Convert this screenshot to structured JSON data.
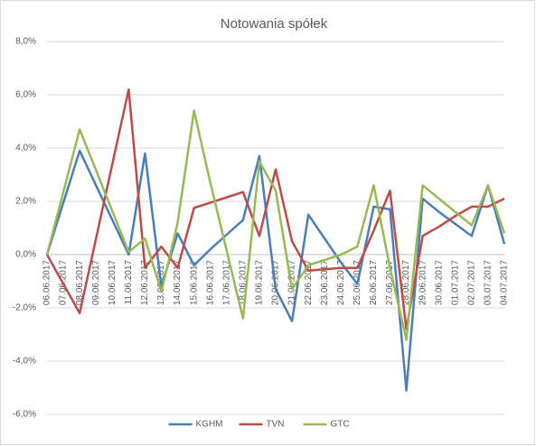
{
  "chart_data": {
    "type": "line",
    "title": "Notowania spółek",
    "categories": [
      "06.06.2017",
      "07.06.2017",
      "08.06.2017",
      "09.06.2017",
      "10.06.2017",
      "11.06.2017",
      "12.06.2017",
      "13.06.2017",
      "14.06.2017",
      "15.06.2017",
      "16.06.2017",
      "17.06.2017",
      "18.06.2017",
      "19.06.2017",
      "20.06.2017",
      "21.06.2017",
      "22.06.2017",
      "23.06.2017",
      "24.06.2017",
      "25.06.2017",
      "26.06.2017",
      "27.06.2017",
      "28.06.2017",
      "29.06.2017",
      "30.06.2017",
      "01.07.2017",
      "02.07.2017",
      "03.07.2017",
      "04.07.2017"
    ],
    "series": [
      {
        "name": "KGHM",
        "color": "#4a7ebb",
        "values": [
          0,
          1.95,
          3.9,
          2.6,
          1.3,
          0,
          3.8,
          -1.2,
          0.8,
          -0.4,
          0.2,
          0.75,
          1.3,
          3.7,
          -1.3,
          -2.5,
          1.5,
          0.6,
          -0.3,
          -1.1,
          1.8,
          1.7,
          -5.1,
          2.1,
          1.6,
          1.15,
          0.7,
          2.6,
          0.4
        ]
      },
      {
        "name": "TVN",
        "color": "#be4b48",
        "values": [
          0,
          -1.1,
          -2.2,
          0.6,
          3.4,
          6.2,
          -0.5,
          0.3,
          -0.5,
          1.75,
          1.95,
          2.15,
          2.35,
          0.7,
          3.2,
          0.5,
          -0.6,
          -0.55,
          -0.5,
          -0.5,
          0.9,
          2.4,
          -2.8,
          0.7,
          1.05,
          1.45,
          1.8,
          1.8,
          2.1
        ]
      },
      {
        "name": "GTC",
        "color": "#98b954",
        "values": [
          0,
          2.35,
          4.7,
          3.17,
          1.63,
          0.1,
          0.6,
          -1.4,
          1.2,
          5.4,
          2.7,
          0.15,
          -2.4,
          3.5,
          2.4,
          -1.3,
          -0.4,
          -0.2,
          0,
          0.3,
          2.6,
          -0.5,
          -3.2,
          2.6,
          2.1,
          1.6,
          1.1,
          2.6,
          0.8
        ]
      }
    ],
    "ylim": [
      -6,
      8
    ],
    "yticks": [
      {
        "value": 8,
        "label": "8,0%"
      },
      {
        "value": 6,
        "label": "6,0%"
      },
      {
        "value": 4,
        "label": "4,0%"
      },
      {
        "value": 2,
        "label": "2,0%"
      },
      {
        "value": 0,
        "label": "0,0%"
      },
      {
        "value": -2,
        "label": "-2,0%"
      },
      {
        "value": -4,
        "label": "-4,0%"
      },
      {
        "value": -6,
        "label": "-6,0%"
      }
    ],
    "grid": true,
    "legend": "bottom"
  }
}
